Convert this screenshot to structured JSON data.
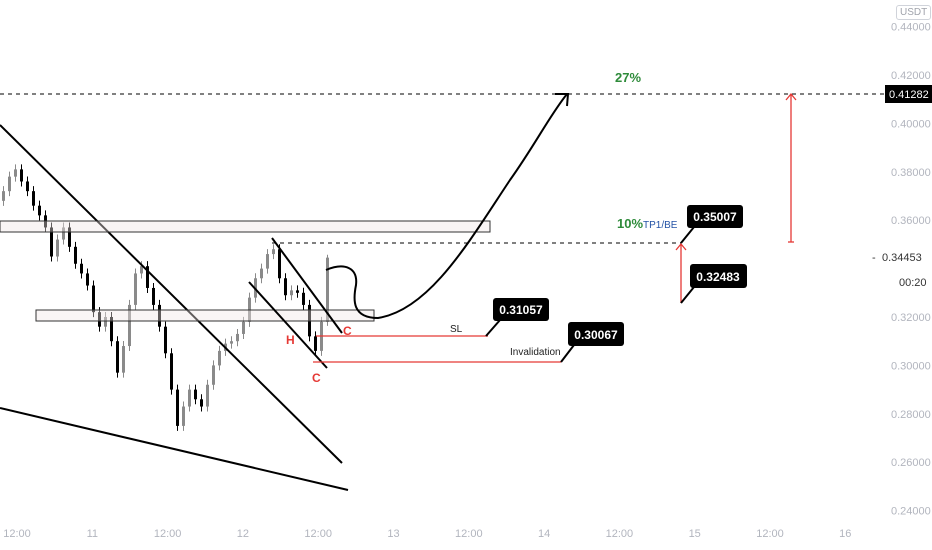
{
  "currency_badge": "USDT",
  "chart_data": {
    "type": "candlestick",
    "y_ticks": [
      "0.44000",
      "0.42000",
      "0.40000",
      "0.38000",
      "0.36000",
      "0.32000",
      "0.30000",
      "0.28000",
      "0.26000",
      "0.24000"
    ],
    "y_tick_values": [
      0.44,
      0.42,
      0.4,
      0.38,
      0.36,
      0.32,
      0.3,
      0.28,
      0.26,
      0.24
    ],
    "x_ticks": [
      "12:00",
      "11",
      "12:00",
      "12",
      "12:00",
      "13",
      "12:00",
      "14",
      "12:00",
      "15",
      "12:00",
      "16"
    ],
    "ylim": [
      0.232,
      0.452
    ],
    "closes": [
      0.372,
      0.378,
      0.381,
      0.376,
      0.372,
      0.366,
      0.362,
      0.357,
      0.345,
      0.352,
      0.357,
      0.349,
      0.342,
      0.338,
      0.333,
      0.322,
      0.316,
      0.32,
      0.31,
      0.297,
      0.308,
      0.325,
      0.338,
      0.341,
      0.332,
      0.325,
      0.316,
      0.305,
      0.29,
      0.275,
      0.283,
      0.29,
      0.286,
      0.283,
      0.292,
      0.3,
      0.306,
      0.309,
      0.31,
      0.313,
      0.318,
      0.328,
      0.336,
      0.34,
      0.346,
      0.348,
      0.336,
      0.329,
      0.331,
      0.33,
      0.325,
      0.312,
      0.306,
      0.318,
      0.34453
    ],
    "candle_colors": {
      "up": "#8a8a8a",
      "down": "#000000"
    },
    "current_price": "0.34453",
    "countdown": "00:20",
    "target_price_label": "0.41282",
    "annotations": {
      "target_pct": "27%",
      "tp1_pct": "10%",
      "tp1_label": "TP1/BE",
      "sl_label": "SL",
      "invalidation_label": "Invalidation",
      "pattern_h": "H",
      "pattern_c1": "C",
      "pattern_c2": "C",
      "callout_tp1": "0.35007",
      "callout_entry": "0.32483",
      "callout_sl": "0.31057",
      "callout_invalidation": "0.30067"
    },
    "colors": {
      "green": "#2e8b3a",
      "blue": "#2453a6",
      "red": "#e53935",
      "black": "#000000"
    }
  }
}
